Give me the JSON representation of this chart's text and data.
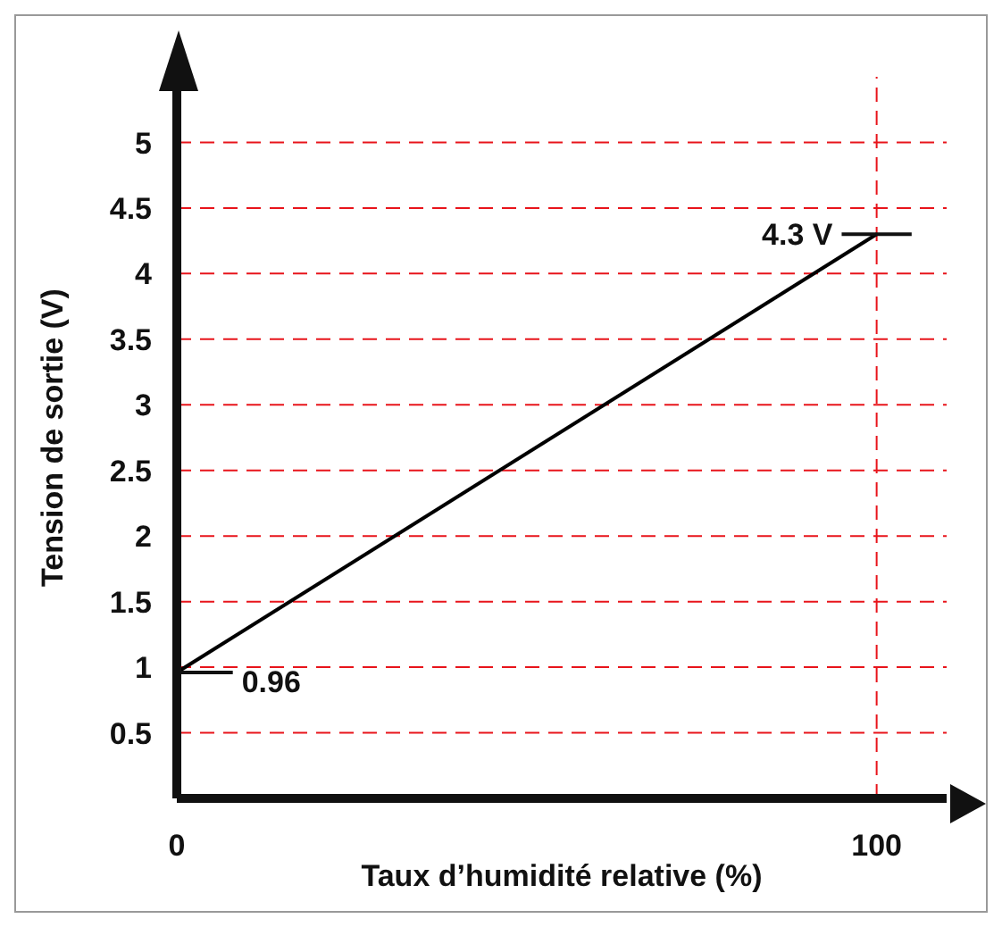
{
  "chart_data": {
    "type": "line",
    "xlabel": "Taux d’humidité relative (%)",
    "ylabel": "Tension de sortie (V)",
    "x": [
      0,
      100
    ],
    "series": [
      {
        "color": "#000000",
        "values": [
          0.96,
          4.3
        ]
      }
    ],
    "xlim": [
      0,
      110
    ],
    "ylim": [
      0,
      5.5
    ],
    "xticks": [
      0,
      100
    ],
    "yticks": [
      0.5,
      1,
      1.5,
      2,
      2.5,
      3,
      3.5,
      4,
      4.5,
      5
    ],
    "grid": "y",
    "marker": "none",
    "line_style": "solid",
    "ref_lines": [
      {
        "axis": "x",
        "value": 100,
        "color": "#e8141b",
        "line_style": "dashed"
      }
    ],
    "annotations": [
      {
        "text": "0.96",
        "x": 0,
        "y": 0.96
      },
      {
        "text": "4.3 V",
        "x": 100,
        "y": 4.3
      }
    ]
  }
}
